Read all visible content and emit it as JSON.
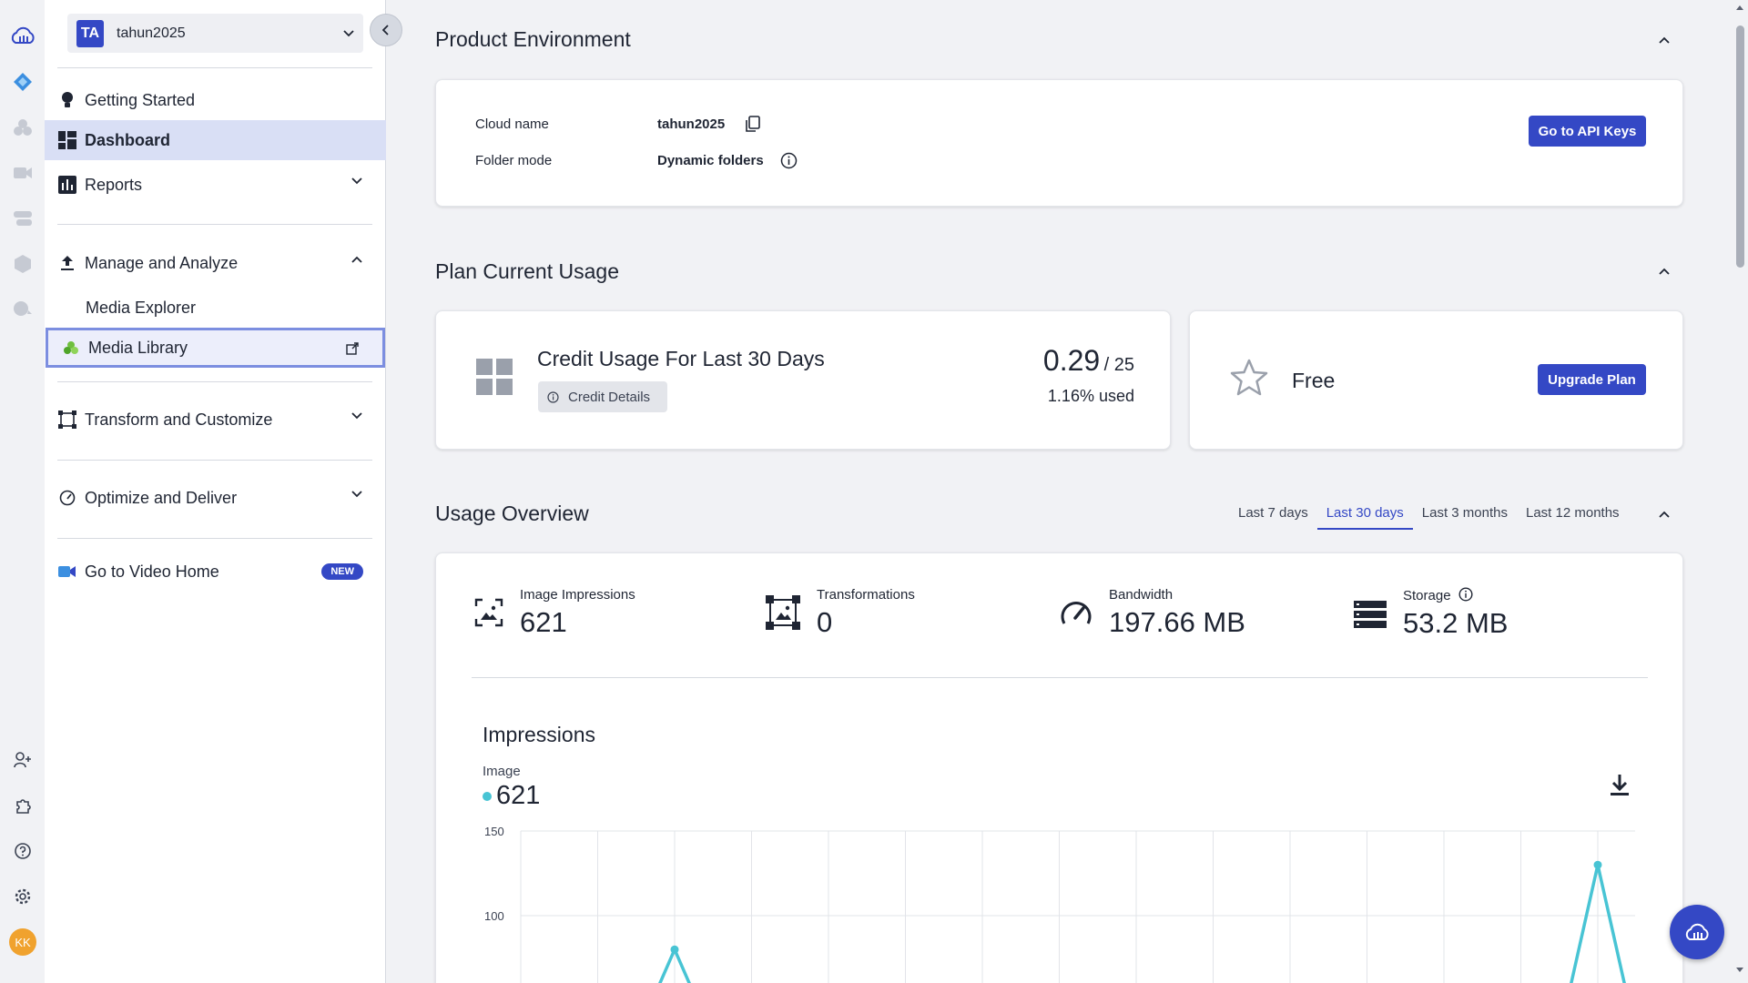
{
  "account": {
    "initials": "TA",
    "name": "tahun2025"
  },
  "sidebar": {
    "getting_started": "Getting Started",
    "dashboard": "Dashboard",
    "reports": "Reports",
    "manage_analyze": "Manage and Analyze",
    "media_explorer": "Media Explorer",
    "media_library": "Media Library",
    "transform_customize": "Transform and Customize",
    "optimize_deliver": "Optimize and Deliver",
    "video_home": "Go to Video Home",
    "new_badge": "NEW"
  },
  "user": {
    "initials": "KK"
  },
  "product_env": {
    "title": "Product Environment",
    "cloud_name_label": "Cloud name",
    "cloud_name_value": "tahun2025",
    "folder_mode_label": "Folder mode",
    "folder_mode_value": "Dynamic folders",
    "api_keys_button": "Go to API Keys"
  },
  "plan_usage": {
    "title": "Plan Current Usage",
    "credit_title": "Credit Usage For Last 30 Days",
    "credit_details_button": "Credit Details",
    "credit_used": "0.29",
    "credit_total": "/ 25",
    "credit_percent": "1.16% used",
    "plan_name": "Free",
    "upgrade_button": "Upgrade Plan"
  },
  "usage_overview": {
    "title": "Usage Overview",
    "tabs": [
      "Last 7 days",
      "Last 30 days",
      "Last 3 months",
      "Last 12 months"
    ],
    "active_tab": "Last 30 days",
    "metrics": [
      {
        "label": "Image Impressions",
        "value": "621",
        "icon": "image-impressions-icon"
      },
      {
        "label": "Transformations",
        "value": "0",
        "icon": "transformations-icon"
      },
      {
        "label": "Bandwidth",
        "value": "197.66 MB",
        "icon": "bandwidth-gauge-icon"
      },
      {
        "label": "Storage",
        "value": "53.2 MB",
        "icon": "storage-icon"
      }
    ]
  },
  "impressions_chart": {
    "title": "Impressions",
    "series_label": "Image",
    "series_total": "621",
    "series_color": "#48c4d4"
  },
  "chart_data": {
    "type": "line",
    "title": "Impressions",
    "ylim": [
      0,
      150
    ],
    "yticks": [
      150,
      100
    ],
    "series": [
      {
        "name": "Image",
        "color": "#48c4d4",
        "points": [
          {
            "x": 2,
            "y": 80
          },
          {
            "x": 14,
            "y": 130
          }
        ]
      }
    ],
    "x_count": 15,
    "grid": true
  }
}
